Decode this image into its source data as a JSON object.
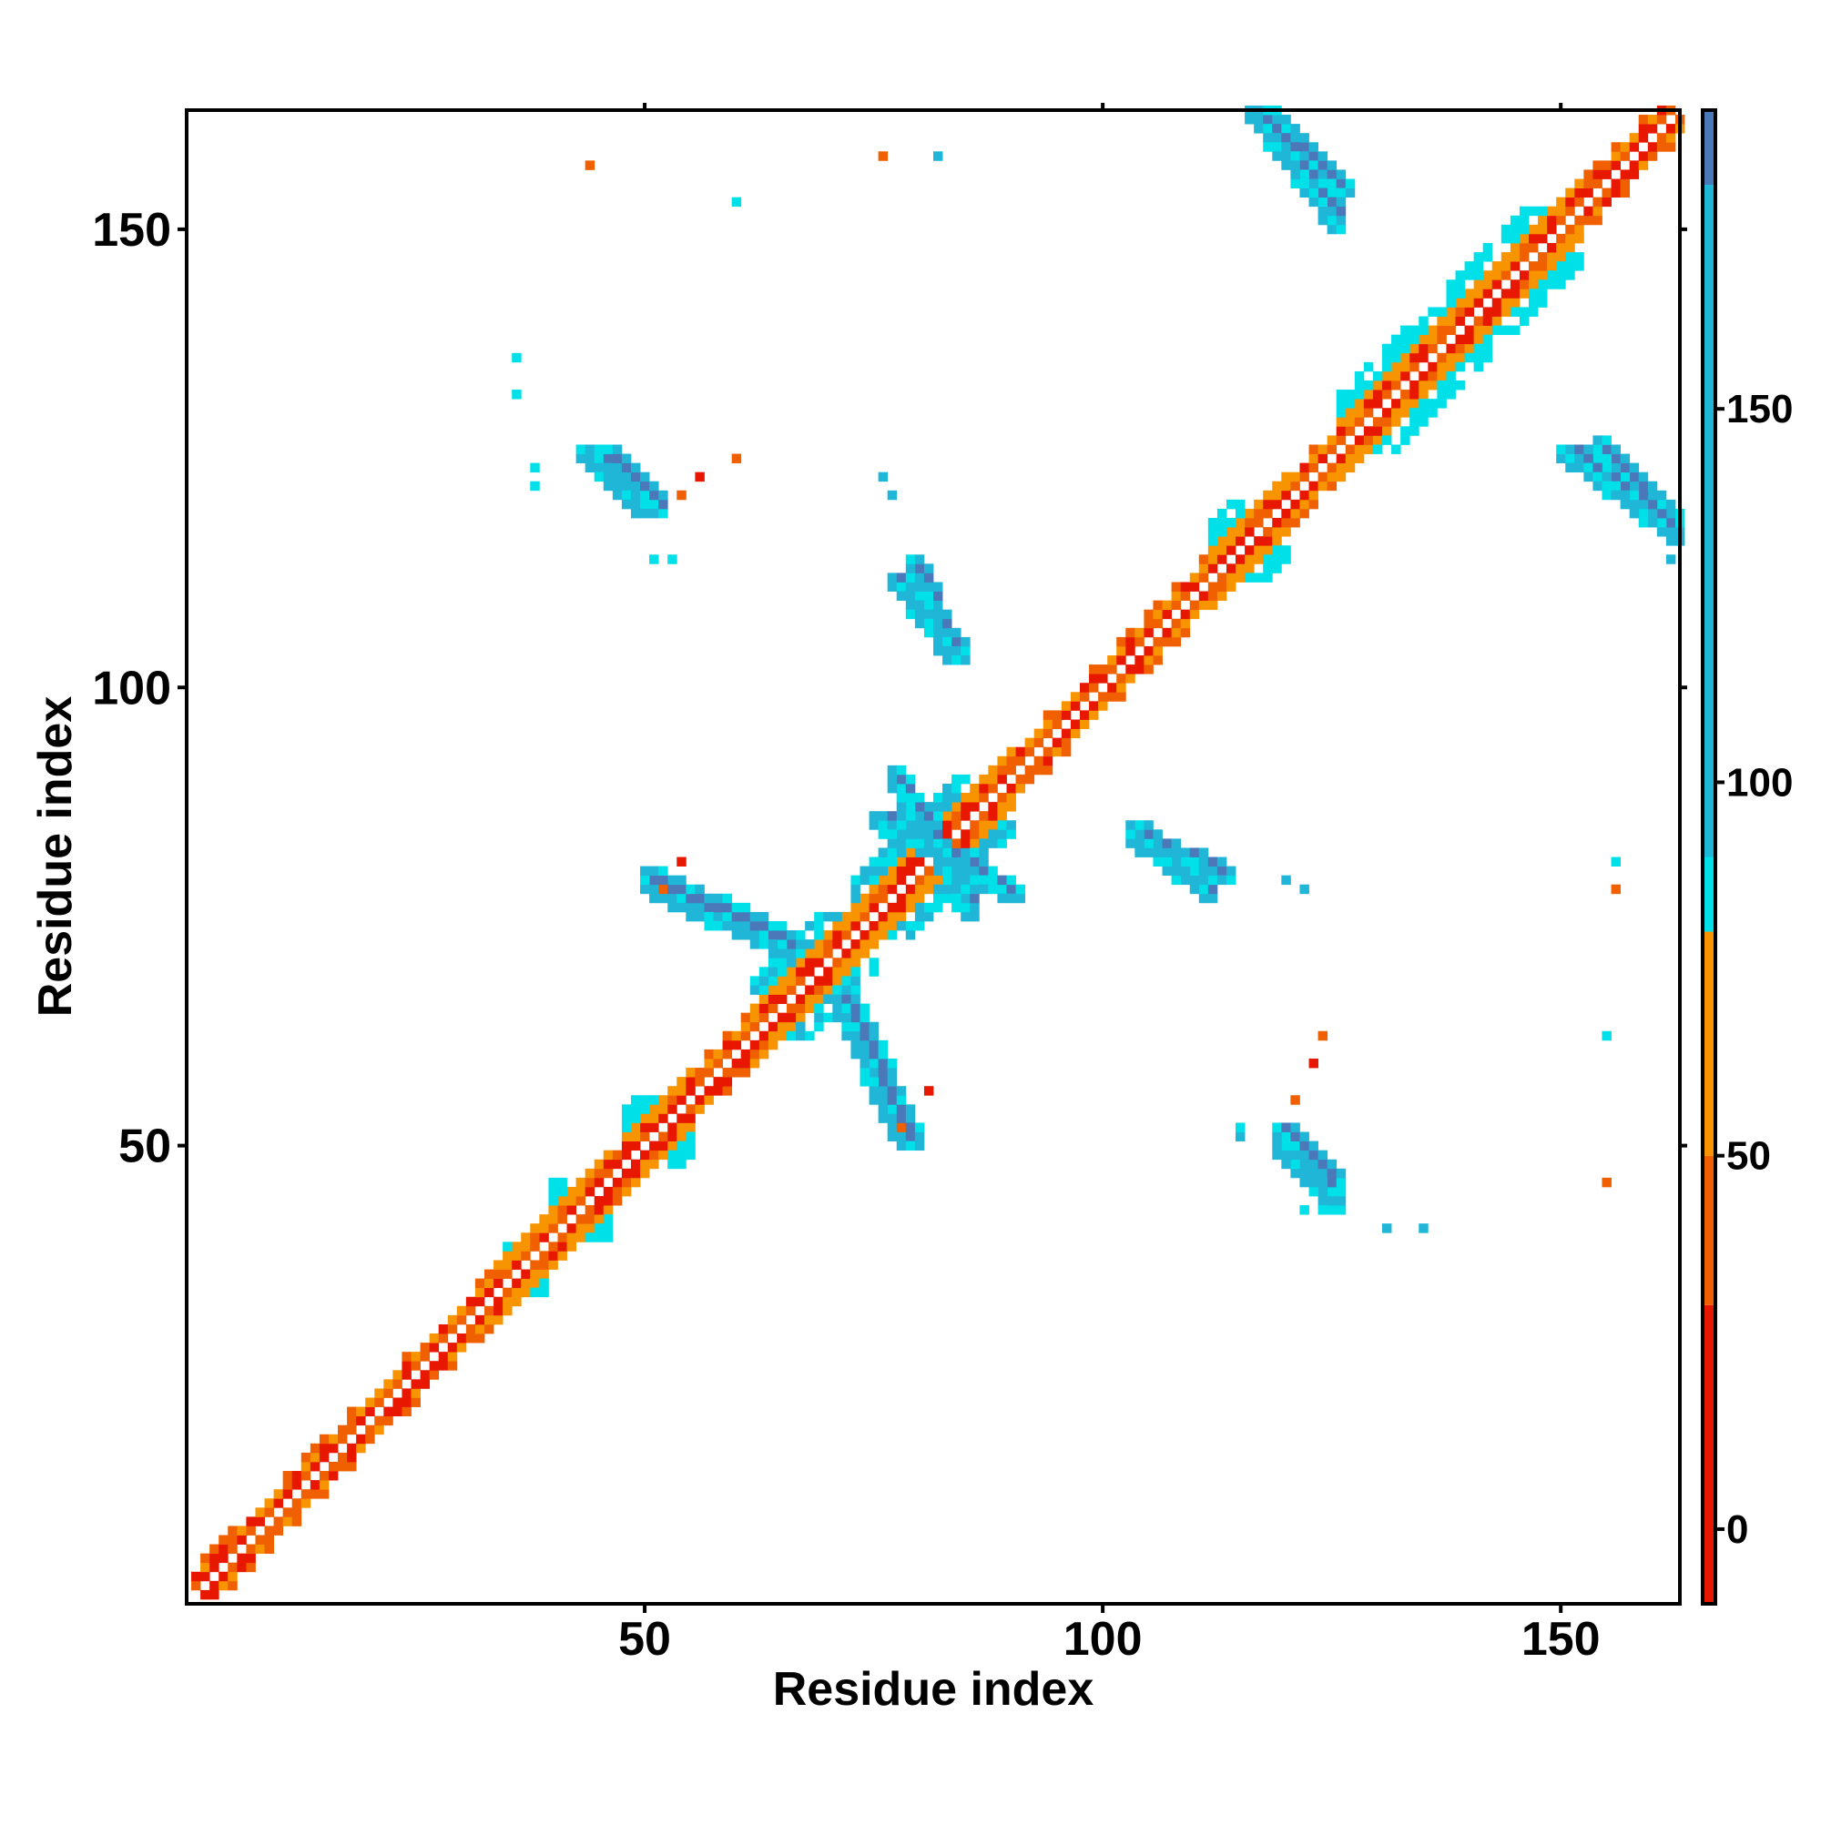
{
  "chart_data": {
    "type": "heatmap",
    "title": "",
    "xlabel": "Residue index",
    "ylabel": "Residue index",
    "xlim": [
      1,
      163
    ],
    "ylim": [
      1,
      163
    ],
    "x_ticks": [
      50,
      100,
      150
    ],
    "y_ticks": [
      50,
      100,
      150
    ],
    "colorbar": {
      "range": [
        -10,
        190
      ],
      "ticks": [
        0,
        50,
        100,
        150
      ],
      "bands": [
        {
          "from": -10,
          "to": 30,
          "color": "#e81800"
        },
        {
          "from": 30,
          "to": 50,
          "color": "#f06000"
        },
        {
          "from": 50,
          "to": 80,
          "color": "#f89400"
        },
        {
          "from": 80,
          "to": 90,
          "color": "#00e0e8"
        },
        {
          "from": 90,
          "to": 180,
          "color": "#20b6d8"
        },
        {
          "from": 180,
          "to": 190,
          "color": "#4a78b8"
        }
      ]
    },
    "value_classes": {
      "red": {
        "value": 10,
        "color": "#e81800"
      },
      "orange_dark": {
        "value": 40,
        "color": "#f06000"
      },
      "orange": {
        "value": 65,
        "color": "#f89400"
      },
      "cyan": {
        "value": 85,
        "color": "#00e0e8"
      },
      "sky": {
        "value": 120,
        "color": "#20b6d8"
      },
      "steel": {
        "value": 170,
        "color": "#4a78b8"
      }
    },
    "regions": [
      {
        "type": "diagonal",
        "from": 1,
        "to": 163,
        "note": "main diagonal band, offsets 1-2 red/orange"
      },
      {
        "type": "helix_patch",
        "x": [
          34,
          39
        ],
        "y": [
          34,
          39
        ],
        "class": "cyan"
      },
      {
        "type": "helix_patch",
        "x": [
          40,
          46
        ],
        "y": [
          40,
          46
        ],
        "class": "cyan"
      },
      {
        "type": "helix_patch",
        "x": [
          48,
          55
        ],
        "y": [
          48,
          55
        ],
        "class": "cyan"
      },
      {
        "type": "helix_patch",
        "x": [
          62,
          75
        ],
        "y": [
          62,
          75
        ],
        "class": "sky"
      },
      {
        "type": "helix_patch",
        "x": [
          73,
          90
        ],
        "y": [
          73,
          90
        ],
        "class": "sky"
      },
      {
        "type": "helix_patch",
        "x": [
          112,
          120
        ],
        "y": [
          112,
          120
        ],
        "class": "cyan"
      },
      {
        "type": "helix_patch",
        "x": [
          126,
          142
        ],
        "y": [
          126,
          142
        ],
        "class": "cyan"
      },
      {
        "type": "helix_patch",
        "x": [
          138,
          152
        ],
        "y": [
          138,
          152
        ],
        "class": "cyan"
      },
      {
        "type": "strand",
        "from": [
          52,
          78
        ],
        "to": [
          66,
          72
        ],
        "class": "steel"
      },
      {
        "type": "strand",
        "from": [
          72,
          66
        ],
        "to": [
          79,
          51
        ],
        "class": "steel"
      },
      {
        "type": "strand",
        "from": [
          76,
          86
        ],
        "to": [
          90,
          78
        ],
        "class": "steel"
      },
      {
        "type": "strand",
        "from": [
          78,
          112
        ],
        "to": [
          84,
          104
        ],
        "class": "steel"
      },
      {
        "type": "strand",
        "from": [
          44,
          126
        ],
        "to": [
          50,
          120
        ],
        "class": "steel"
      },
      {
        "type": "strand",
        "from": [
          104,
          84
        ],
        "to": [
          113,
          80
        ],
        "class": "steel"
      },
      {
        "type": "strand",
        "from": [
          120,
          52
        ],
        "to": [
          125,
          46
        ],
        "class": "steel"
      },
      {
        "type": "strand",
        "from": [
          117,
          163
        ],
        "to": [
          126,
          155
        ],
        "class": "steel"
      },
      {
        "type": "strand",
        "from": [
          151,
          126
        ],
        "to": [
          162,
          118
        ],
        "class": "steel"
      },
      {
        "type": "scatter",
        "points": [
          [
            44,
            157,
            "orange_dark"
          ],
          [
            60,
            153,
            "cyan"
          ],
          [
            76,
            158,
            "orange_dark"
          ],
          [
            82,
            158,
            "sky"
          ],
          [
            36,
            136,
            "cyan"
          ],
          [
            36,
            132,
            "cyan"
          ],
          [
            38,
            124,
            "cyan"
          ],
          [
            38,
            122,
            "cyan"
          ],
          [
            60,
            125,
            "orange_dark"
          ],
          [
            56,
            123,
            "red"
          ],
          [
            54,
            121,
            "orange_dark"
          ],
          [
            76,
            123,
            "sky"
          ],
          [
            77,
            121,
            "sky"
          ],
          [
            51,
            114,
            "cyan"
          ],
          [
            53,
            114,
            "cyan"
          ],
          [
            54,
            81,
            "red"
          ],
          [
            52,
            78,
            "orange_dark"
          ],
          [
            81,
            56,
            "red"
          ],
          [
            78,
            52,
            "orange_dark"
          ],
          [
            120,
            79,
            "sky"
          ],
          [
            122,
            78,
            "sky"
          ],
          [
            124,
            62,
            "orange_dark"
          ],
          [
            123,
            59,
            "red"
          ],
          [
            121,
            55,
            "orange_dark"
          ],
          [
            115,
            51,
            "sky"
          ],
          [
            115,
            52,
            "cyan"
          ],
          [
            122,
            43,
            "cyan"
          ],
          [
            124,
            43,
            "cyan"
          ],
          [
            131,
            41,
            "sky"
          ],
          [
            135,
            41,
            "sky"
          ],
          [
            156,
            78,
            "orange_dark"
          ],
          [
            156,
            81,
            "cyan"
          ],
          [
            155,
            62,
            "cyan"
          ],
          [
            155,
            46,
            "orange_dark"
          ],
          [
            162,
            114,
            "sky"
          ],
          [
            125,
            43,
            "cyan"
          ]
        ]
      }
    ]
  }
}
